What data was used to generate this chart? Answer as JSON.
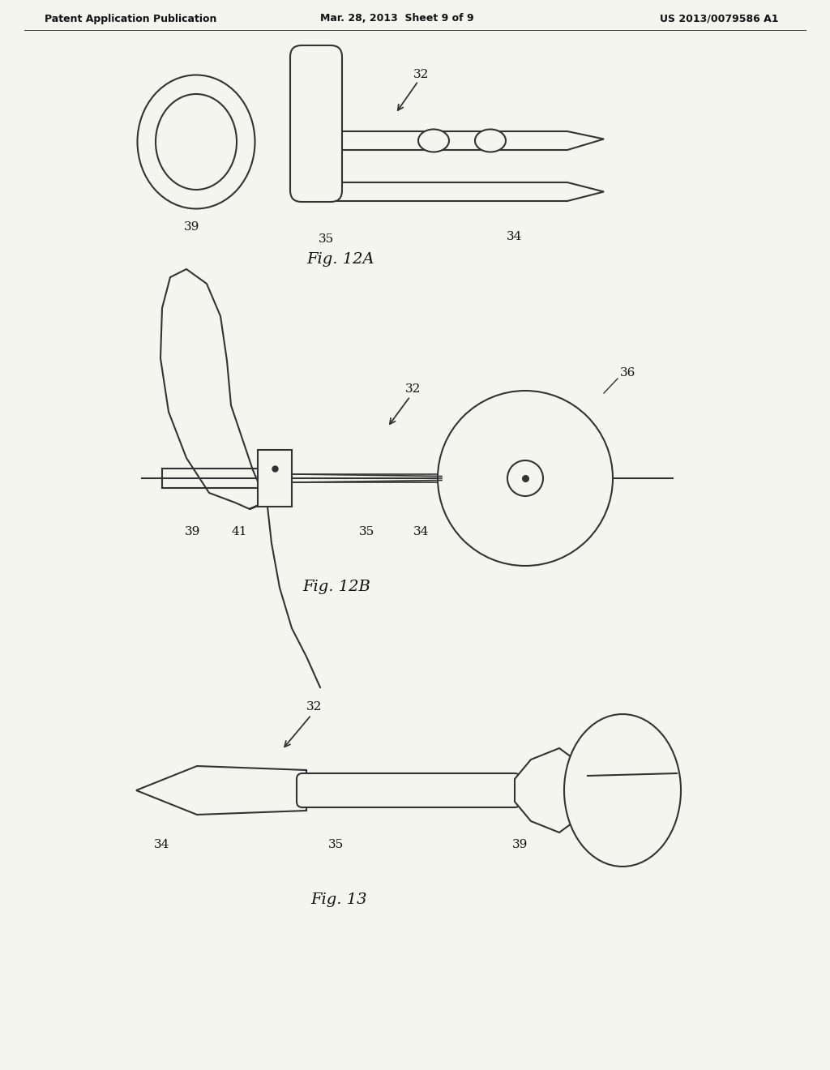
{
  "bg": "#f5f5f0",
  "lc": "#333333",
  "tc": "#111111",
  "header_left": "Patent Application Publication",
  "header_center": "Mar. 28, 2013  Sheet 9 of 9",
  "header_right": "US 2013/0079586 A1",
  "fig12a": "Fig. 12A",
  "fig12b": "Fig. 12B",
  "fig13": "Fig. 13"
}
